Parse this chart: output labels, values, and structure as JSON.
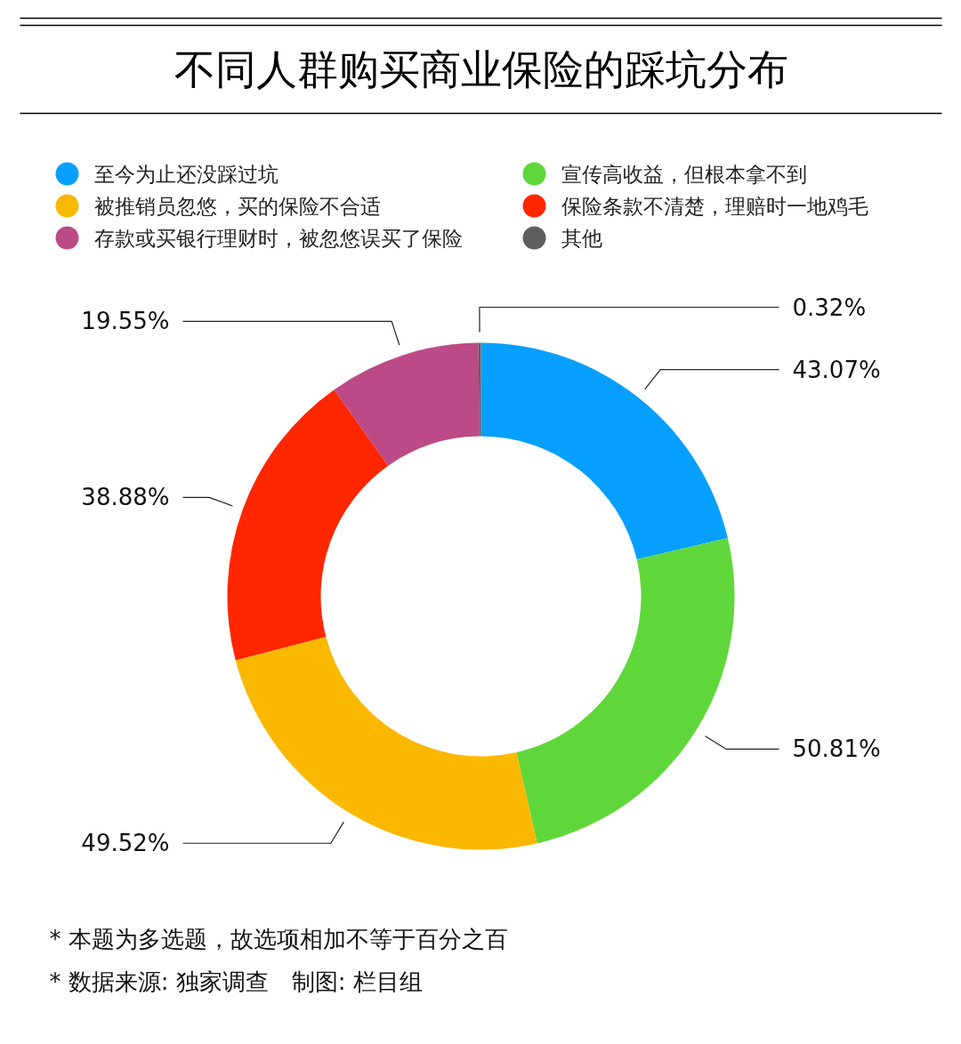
{
  "chart_data": {
    "type": "donut",
    "title": "不同人群购买商业保险的踩坑分布",
    "categories": [
      "至今为止还没踩过坑",
      "宣传高收益，但根本拿不到",
      "被推销员忽悠，买的保险不合适",
      "保险条款不清楚，理赔时一地鸡毛",
      "存款或买银行理财时，被忽悠误买了保险",
      "其他"
    ],
    "values": [
      43.07,
      50.81,
      49.52,
      38.88,
      19.55,
      0.32
    ],
    "colors": [
      "#069ffe",
      "#5fd73a",
      "#fab800",
      "#ff2600",
      "#bc4a86",
      "#5e5e5e"
    ],
    "value_labels": [
      "43.07%",
      "50.81%",
      "49.52%",
      "38.88%",
      "19.55%",
      "0.32%"
    ],
    "legend": "top",
    "annotations": [
      "* 本题为多选题，故选项相加不等于百分之百",
      "* 数据来源: 独家调查　制图: 栏目组"
    ]
  }
}
